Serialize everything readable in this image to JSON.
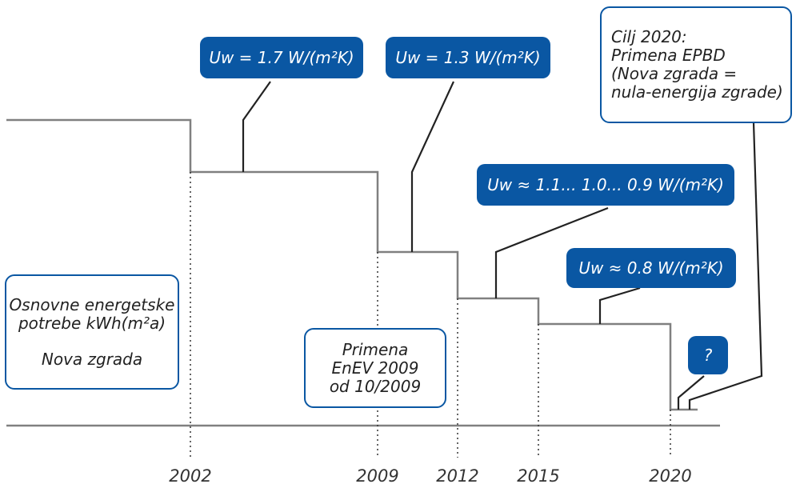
{
  "colors": {
    "box_blue": "#0a57a3",
    "step_line": "#808080",
    "leader": "#222222",
    "axis": "#808080"
  },
  "years": [
    "2002",
    "2009",
    "2012",
    "2015",
    "2020"
  ],
  "callouts": {
    "uw_2002": "Uw = 1.7 W/(m²K)",
    "uw_2009": "Uw = 1.3 W/(m²K)",
    "uw_2012": "Uw ≈ 1.1... 1.0... 0.9 W/(m²K)",
    "uw_2015": "Uw ≈ 0.8 W/(m²K)",
    "unknown": "?"
  },
  "energy_label": {
    "line1": "Osnovne energetske",
    "line2": "potrebe kWh(m²a)",
    "line3": "Nova zgrada"
  },
  "enev_label": {
    "line1": "Primena",
    "line2": "EnEV 2009",
    "line3": "od 10/2009"
  },
  "goal_label": {
    "line1": "Cilj 2020:",
    "line2": "Primena EPBD",
    "line3": "(Nova zgrada =",
    "line4": "nula-energija zgrade)"
  }
}
